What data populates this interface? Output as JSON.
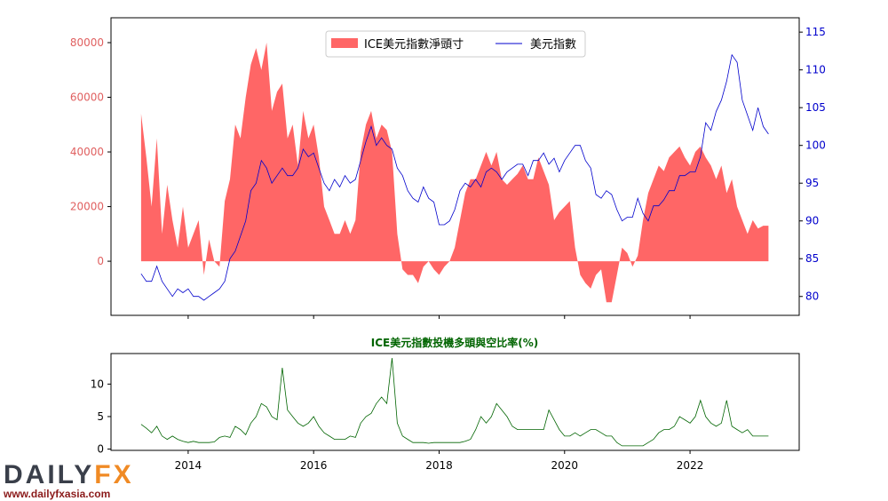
{
  "chart_data": [
    {
      "type": "area+line",
      "legend": [
        "ICE美元指數淨頭寸",
        "美元指數"
      ],
      "legend_placement": "upper-center",
      "colors": {
        "net": "#ff6666",
        "index": "#0000cc",
        "left_ticks": "#e06060",
        "right_ticks": "#0000cc"
      },
      "left_yticks": [
        0,
        20000,
        40000,
        60000,
        80000
      ],
      "right_yticks": [
        80,
        85,
        90,
        95,
        100,
        105,
        110,
        115
      ],
      "left_ylim": [
        -19800,
        89100
      ],
      "right_ylim": [
        77.5,
        116.9
      ],
      "x_start": "2013-04",
      "net_positions": [
        54000,
        38000,
        20000,
        45000,
        10000,
        28000,
        15000,
        5000,
        20000,
        5000,
        10000,
        15000,
        -5000,
        8000,
        0,
        -2000,
        22000,
        30000,
        50000,
        45000,
        60000,
        72000,
        78000,
        70000,
        80000,
        55000,
        62000,
        65000,
        45000,
        50000,
        35000,
        55000,
        45000,
        50000,
        38000,
        20000,
        15000,
        10000,
        10000,
        15000,
        10000,
        15000,
        40000,
        50000,
        55000,
        45000,
        50000,
        48000,
        40000,
        10000,
        -3000,
        -5000,
        -5000,
        -8000,
        -2000,
        0,
        -3000,
        -5000,
        -2000,
        0,
        5000,
        15000,
        25000,
        30000,
        30000,
        35000,
        40000,
        35000,
        40000,
        30000,
        28000,
        30000,
        32000,
        35000,
        30000,
        30000,
        38000,
        33000,
        28000,
        15000,
        18000,
        20000,
        22000,
        5000,
        -5000,
        -8000,
        -10000,
        -5000,
        -3000,
        -15000,
        -15000,
        -5000,
        5000,
        3000,
        -2000,
        2000,
        15000,
        25000,
        30000,
        35000,
        33000,
        38000,
        40000,
        42000,
        38000,
        35000,
        40000,
        42000,
        38000,
        35000,
        30000,
        35000,
        25000,
        30000,
        20000,
        15000,
        10000,
        15000,
        12000,
        13000,
        13000
      ],
      "dollar_index": [
        83,
        82,
        82,
        84,
        82,
        81,
        80,
        81,
        80.5,
        81,
        80,
        80,
        79.5,
        80,
        80.5,
        81,
        82,
        85,
        86,
        88,
        90,
        94,
        95,
        98,
        97,
        95,
        96,
        97,
        96,
        96,
        97,
        99.5,
        98.5,
        99,
        97,
        95,
        94,
        95.5,
        94.5,
        96,
        95,
        95.5,
        98,
        100.5,
        102.5,
        100,
        101,
        100,
        99.5,
        97,
        96,
        94,
        93,
        92.5,
        94.5,
        93,
        92.5,
        89.5,
        89.5,
        90,
        91.5,
        94,
        95,
        94.5,
        95.5,
        94.5,
        96.5,
        97,
        96.5,
        95.5,
        96.5,
        97,
        97.5,
        97.5,
        96,
        98,
        98,
        99,
        97.5,
        98.3,
        96.5,
        98,
        99,
        100,
        100,
        98,
        97,
        93.5,
        93,
        94,
        93.5,
        91.5,
        90,
        90.5,
        90.5,
        93,
        91,
        90,
        92,
        92,
        92.8,
        94,
        94,
        96,
        96,
        96.5,
        96.5,
        98.5,
        103,
        102,
        104.5,
        106,
        108.5,
        112,
        111,
        106,
        104,
        102,
        105,
        102.5,
        101.5
      ],
      "xticks": [
        "2014",
        "2016",
        "2018",
        "2020",
        "2022"
      ]
    },
    {
      "type": "line",
      "title": "ICE美元指數投機多頭與空比率(%)",
      "color": "#006400",
      "yticks": [
        0,
        5,
        10
      ],
      "ylim": [
        -0.2,
        14.7
      ],
      "x_start": "2013-04",
      "values": [
        3.8,
        3.2,
        2.5,
        3.5,
        2,
        1.5,
        2,
        1.5,
        1.2,
        1,
        1.2,
        1,
        1,
        1,
        1.1,
        1.8,
        2,
        1.8,
        3.5,
        3,
        2.2,
        4,
        5,
        7,
        6.5,
        5,
        4.5,
        12.5,
        6,
        5,
        4,
        3.5,
        4,
        5,
        3.5,
        2.5,
        2,
        1.5,
        1.5,
        1.5,
        2,
        1.8,
        4,
        5,
        5.5,
        7,
        8,
        7,
        14,
        4,
        2,
        1.5,
        1,
        1,
        1,
        0.9,
        1,
        1,
        1,
        1,
        1,
        1,
        1.2,
        1.5,
        3,
        5,
        4,
        5,
        7,
        6,
        5,
        3.5,
        3,
        3,
        3,
        3,
        3,
        3,
        6,
        4.5,
        3,
        2,
        2,
        2.5,
        2,
        2.5,
        3,
        3,
        2.5,
        2,
        2,
        1,
        0.5,
        0.5,
        0.5,
        0.5,
        0.5,
        1,
        1.5,
        2.5,
        3,
        3,
        3.5,
        5,
        4.5,
        4,
        5,
        7.5,
        5,
        4,
        3.5,
        4,
        7.5,
        3.5,
        3,
        2.5,
        3,
        2,
        2,
        2,
        2
      ],
      "xticks": [
        "2014",
        "2016",
        "2018",
        "2020",
        "2022"
      ]
    }
  ],
  "logo": {
    "text1": "DAILY",
    "text2": "FX",
    "url": "www.dailyfxasia.com"
  }
}
